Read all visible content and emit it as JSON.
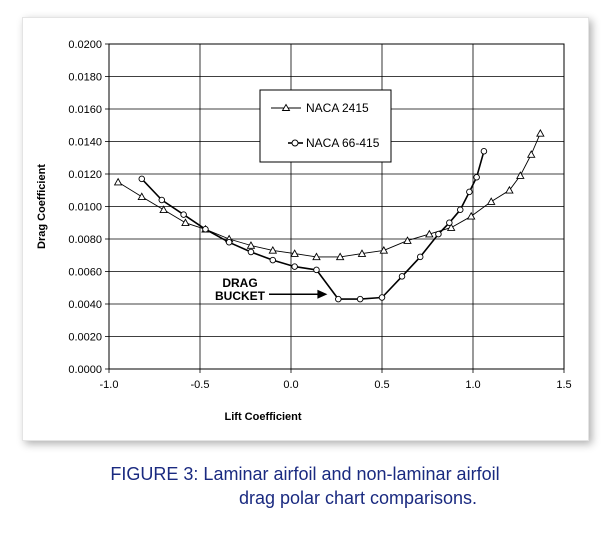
{
  "chart_data": {
    "type": "line",
    "title": "",
    "xlabel": "Lift Coefficient",
    "ylabel": "Drag Coefficient",
    "xlim": [
      -1.0,
      1.5
    ],
    "ylim": [
      0.0,
      0.02
    ],
    "x_ticks": [
      "-1.0",
      "-0.5",
      "0.0",
      "0.5",
      "1.0",
      "1.5"
    ],
    "y_ticks": [
      "0.0000",
      "0.0020",
      "0.0040",
      "0.0060",
      "0.0080",
      "0.0100",
      "0.0120",
      "0.0140",
      "0.0160",
      "0.0180",
      "0.0200"
    ],
    "grid": true,
    "legend_position": "top-center",
    "series": [
      {
        "name": "NACA 2415",
        "marker": "triangle",
        "color": "#000000",
        "x": [
          -0.95,
          -0.82,
          -0.7,
          -0.58,
          -0.47,
          -0.34,
          -0.22,
          -0.1,
          0.02,
          0.14,
          0.27,
          0.39,
          0.51,
          0.64,
          0.76,
          0.88,
          0.99,
          1.1,
          1.2,
          1.26,
          1.32,
          1.37
        ],
        "y": [
          0.0115,
          0.0106,
          0.0098,
          0.009,
          0.0086,
          0.008,
          0.0076,
          0.0073,
          0.0071,
          0.0069,
          0.0069,
          0.0071,
          0.0073,
          0.0079,
          0.0083,
          0.0087,
          0.0094,
          0.0103,
          0.011,
          0.0119,
          0.0132,
          0.0145
        ]
      },
      {
        "name": "NACA 66-415",
        "marker": "circle",
        "color": "#000000",
        "x": [
          -0.82,
          -0.71,
          -0.59,
          -0.47,
          -0.34,
          -0.22,
          -0.1,
          0.02,
          0.14,
          0.26,
          0.38,
          0.5,
          0.61,
          0.71,
          0.81,
          0.87,
          0.93,
          0.98,
          1.02,
          1.06
        ],
        "y": [
          0.0117,
          0.0104,
          0.0095,
          0.0086,
          0.0078,
          0.0072,
          0.0067,
          0.0063,
          0.0061,
          0.0043,
          0.0043,
          0.0044,
          0.0057,
          0.0069,
          0.0083,
          0.009,
          0.0098,
          0.0109,
          0.0118,
          0.0134
        ]
      }
    ],
    "annotations": [
      {
        "lines": [
          "DRAG",
          "BUCKET"
        ],
        "points_to": [
          0.2,
          0.0046
        ]
      }
    ]
  },
  "caption": {
    "line1": "FIGURE 3: Laminar airfoil and non-laminar airfoil",
    "line2": "drag polar chart comparisons."
  }
}
